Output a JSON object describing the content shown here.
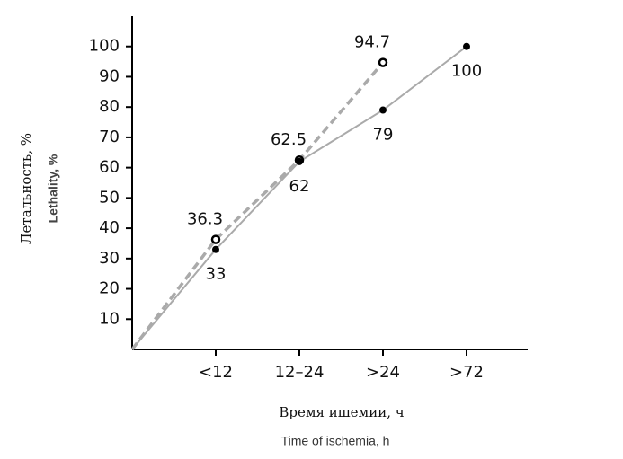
{
  "chart_data": {
    "type": "line",
    "categories": [
      null,
      "<12",
      "12–24",
      ">24",
      ">72"
    ],
    "series": [
      {
        "color": "#aaaaaa",
        "dashed": true,
        "marker": "open",
        "values": [
          0,
          36.3,
          62.5,
          94.7,
          null
        ],
        "value_labels": [
          null,
          "36.3",
          "62.5",
          "94.7",
          null
        ]
      },
      {
        "color": "#aaaaaa",
        "dashed": false,
        "marker": "filled",
        "values": [
          0,
          33,
          62,
          79,
          100
        ],
        "value_labels": [
          null,
          "33",
          "62",
          "79",
          "100"
        ]
      }
    ],
    "ylim": [
      0,
      110
    ],
    "yticks": [
      10,
      20,
      30,
      40,
      50,
      60,
      70,
      80,
      90,
      100
    ],
    "y_labels": [
      "Летальность, %",
      "Lethality, %"
    ],
    "x_labels": [
      "Время ишемии, ч",
      "Time of ischemia, h"
    ],
    "grid": false
  }
}
